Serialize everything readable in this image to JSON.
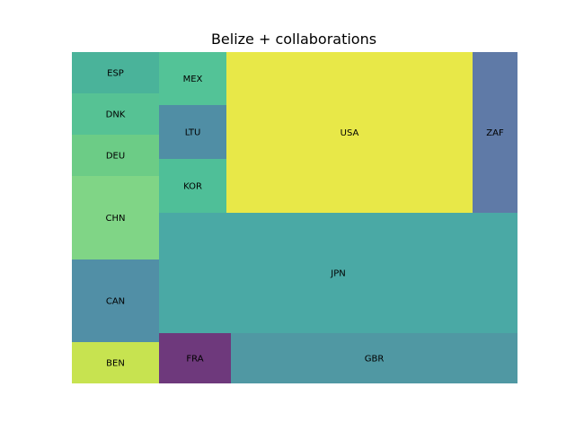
{
  "chart_data": {
    "type": "treemap",
    "title": "Belize + collaborations",
    "grid": false,
    "legend": "none",
    "cells": [
      {
        "label": "ESP",
        "color": "#4ab39a"
      },
      {
        "label": "DNK",
        "color": "#56c294"
      },
      {
        "label": "DEU",
        "color": "#6ccc86"
      },
      {
        "label": "CHN",
        "color": "#80d586"
      },
      {
        "label": "CAN",
        "color": "#518fa6"
      },
      {
        "label": "BEN",
        "color": "#c7e350"
      },
      {
        "label": "MEX",
        "color": "#53c397"
      },
      {
        "label": "LTU",
        "color": "#508ea5"
      },
      {
        "label": "KOR",
        "color": "#4fbf98"
      },
      {
        "label": "USA",
        "color": "#e8e848"
      },
      {
        "label": "ZAF",
        "color": "#5f7aa7"
      },
      {
        "label": "JPN",
        "color": "#4aa9a5"
      },
      {
        "label": "FRA",
        "color": "#6e397c"
      },
      {
        "label": "GBR",
        "color": "#5098a3"
      }
    ]
  }
}
